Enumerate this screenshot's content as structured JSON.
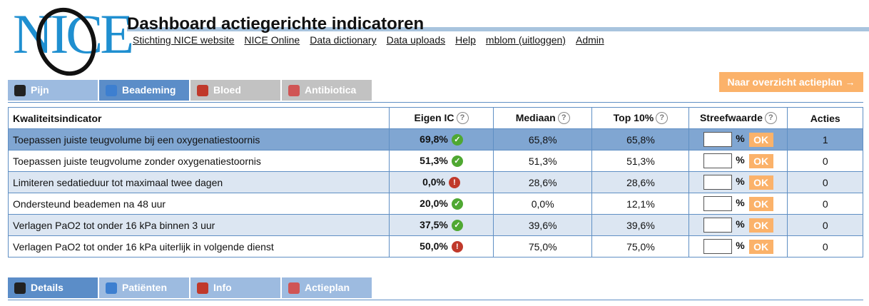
{
  "header": {
    "logo": "NICE",
    "title": "Dashboard actiegerichte indicatoren",
    "links": [
      "Stichting NICE website",
      "NICE Online",
      "Data dictionary",
      "Data uploads",
      "Help",
      "mblom (uitloggen)",
      "Admin"
    ]
  },
  "top_tabs": [
    {
      "label": "Pijn",
      "state": "normal"
    },
    {
      "label": "Beademing",
      "state": "active"
    },
    {
      "label": "Bloed",
      "state": "disabled"
    },
    {
      "label": "Antibiotica",
      "state": "disabled"
    }
  ],
  "action_button": "Naar overzicht actieplan →",
  "table": {
    "headers": [
      "Kwaliteitsindicator",
      "Eigen IC",
      "Mediaan",
      "Top 10%",
      "Streefwaarde",
      "Acties"
    ],
    "unit": "%",
    "ok_label": "OK",
    "rows": [
      {
        "indicator": "Toepassen juiste teugvolume bij een oxygenatiestoornis",
        "eigen_ic": "69,8%",
        "status": "ok",
        "mediaan": "65,8%",
        "top10": "65,8%",
        "acties": 1
      },
      {
        "indicator": "Toepassen juiste teugvolume zonder oxygenatiestoornis",
        "eigen_ic": "51,3%",
        "status": "ok",
        "mediaan": "51,3%",
        "top10": "51,3%",
        "acties": 0
      },
      {
        "indicator": "Limiteren sedatieduur tot maximaal twee dagen",
        "eigen_ic": "0,0%",
        "status": "warn",
        "mediaan": "28,6%",
        "top10": "28,6%",
        "acties": 0
      },
      {
        "indicator": "Ondersteund beademen na 48 uur",
        "eigen_ic": "20,0%",
        "status": "ok",
        "mediaan": "0,0%",
        "top10": "12,1%",
        "acties": 0
      },
      {
        "indicator": "Verlagen PaO2 tot onder 16 kPa binnen 3 uur",
        "eigen_ic": "37,5%",
        "status": "ok",
        "mediaan": "39,6%",
        "top10": "39,6%",
        "acties": 0
      },
      {
        "indicator": "Verlagen PaO2 tot onder 16 kPa uiterlijk in volgende dienst",
        "eigen_ic": "50,0%",
        "status": "warn",
        "mediaan": "75,0%",
        "top10": "75,0%",
        "acties": 0
      }
    ]
  },
  "bottom_tabs": [
    {
      "label": "Details",
      "state": "active"
    },
    {
      "label": "Patiënten",
      "state": "normal"
    },
    {
      "label": "Info",
      "state": "normal"
    },
    {
      "label": "Actieplan",
      "state": "normal"
    }
  ]
}
